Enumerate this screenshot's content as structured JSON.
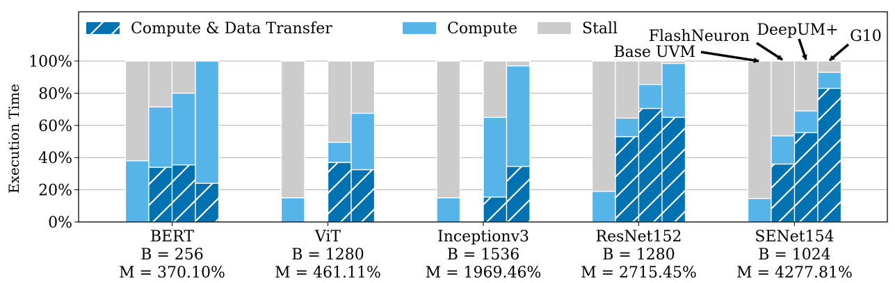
{
  "chart_data": {
    "type": "bar",
    "stacked": true,
    "ylabel": "Execution Time",
    "ylim": [
      0,
      100
    ],
    "yticks": [
      "0%",
      "20%",
      "40%",
      "60%",
      "80%",
      "100%"
    ],
    "grid": "y",
    "legend": {
      "position": "top",
      "entries": [
        "Compute & Data Transfer",
        "Compute",
        "Stall"
      ]
    },
    "stack_order": [
      "Compute & Data Transfer",
      "Compute",
      "Stall"
    ],
    "colors": {
      "Compute & Data Transfer": "#0072b2",
      "Compute": "#56b4e9",
      "Stall": "#cccccc"
    },
    "systems": [
      "Base UVM",
      "FlashNeuron",
      "DeepUM+",
      "G10"
    ],
    "groups": [
      {
        "label": [
          "BERT",
          "B = 256",
          "M = 370.10%"
        ],
        "bars": [
          {
            "system": "Base UVM",
            "cdt": 0,
            "compute": 38,
            "stall": 62
          },
          {
            "system": "FlashNeuron",
            "cdt": 34,
            "compute": 37.5,
            "stall": 28.5
          },
          {
            "system": "DeepUM+",
            "cdt": 35.5,
            "compute": 44.5,
            "stall": 20
          },
          {
            "system": "G10",
            "cdt": 24,
            "compute": 76,
            "stall": 0
          }
        ]
      },
      {
        "label": [
          "ViT",
          "B = 1280",
          "M = 461.11%"
        ],
        "bars": [
          {
            "system": "Base UVM",
            "cdt": 0,
            "compute": 15,
            "stall": 85
          },
          {
            "system": "FlashNeuron",
            "cdt": null,
            "compute": null,
            "stall": null
          },
          {
            "system": "DeepUM+",
            "cdt": 37,
            "compute": 12.5,
            "stall": 50.5
          },
          {
            "system": "G10",
            "cdt": 32.5,
            "compute": 35,
            "stall": 32.5
          }
        ]
      },
      {
        "label": [
          "Inceptionv3",
          "B = 1536",
          "M = 1969.46%"
        ],
        "bars": [
          {
            "system": "Base UVM",
            "cdt": 0,
            "compute": 15,
            "stall": 85
          },
          {
            "system": "FlashNeuron",
            "cdt": null,
            "compute": null,
            "stall": null
          },
          {
            "system": "DeepUM+",
            "cdt": 15.5,
            "compute": 49.5,
            "stall": 35
          },
          {
            "system": "G10",
            "cdt": 34.5,
            "compute": 62.5,
            "stall": 3
          }
        ]
      },
      {
        "label": [
          "ResNet152",
          "B = 1280",
          "M = 2715.45%"
        ],
        "bars": [
          {
            "system": "Base UVM",
            "cdt": 0,
            "compute": 19,
            "stall": 81
          },
          {
            "system": "FlashNeuron",
            "cdt": 53,
            "compute": 11.5,
            "stall": 35.5
          },
          {
            "system": "DeepUM+",
            "cdt": 70.5,
            "compute": 15,
            "stall": 14.5
          },
          {
            "system": "G10",
            "cdt": 65,
            "compute": 33.5,
            "stall": 1.5
          }
        ]
      },
      {
        "label": [
          "SENet154",
          "B = 1024",
          "M = 4277.81%"
        ],
        "bars": [
          {
            "system": "Base UVM",
            "cdt": 0,
            "compute": 14.5,
            "stall": 85.5
          },
          {
            "system": "FlashNeuron",
            "cdt": 36,
            "compute": 17.5,
            "stall": 46.5
          },
          {
            "system": "DeepUM+",
            "cdt": 55.5,
            "compute": 13.5,
            "stall": 31
          },
          {
            "system": "G10",
            "cdt": 83,
            "compute": 10,
            "stall": 7
          }
        ]
      }
    ],
    "annotations": [
      "Base UVM",
      "FlashNeuron",
      "DeepUM+",
      "G10"
    ]
  }
}
